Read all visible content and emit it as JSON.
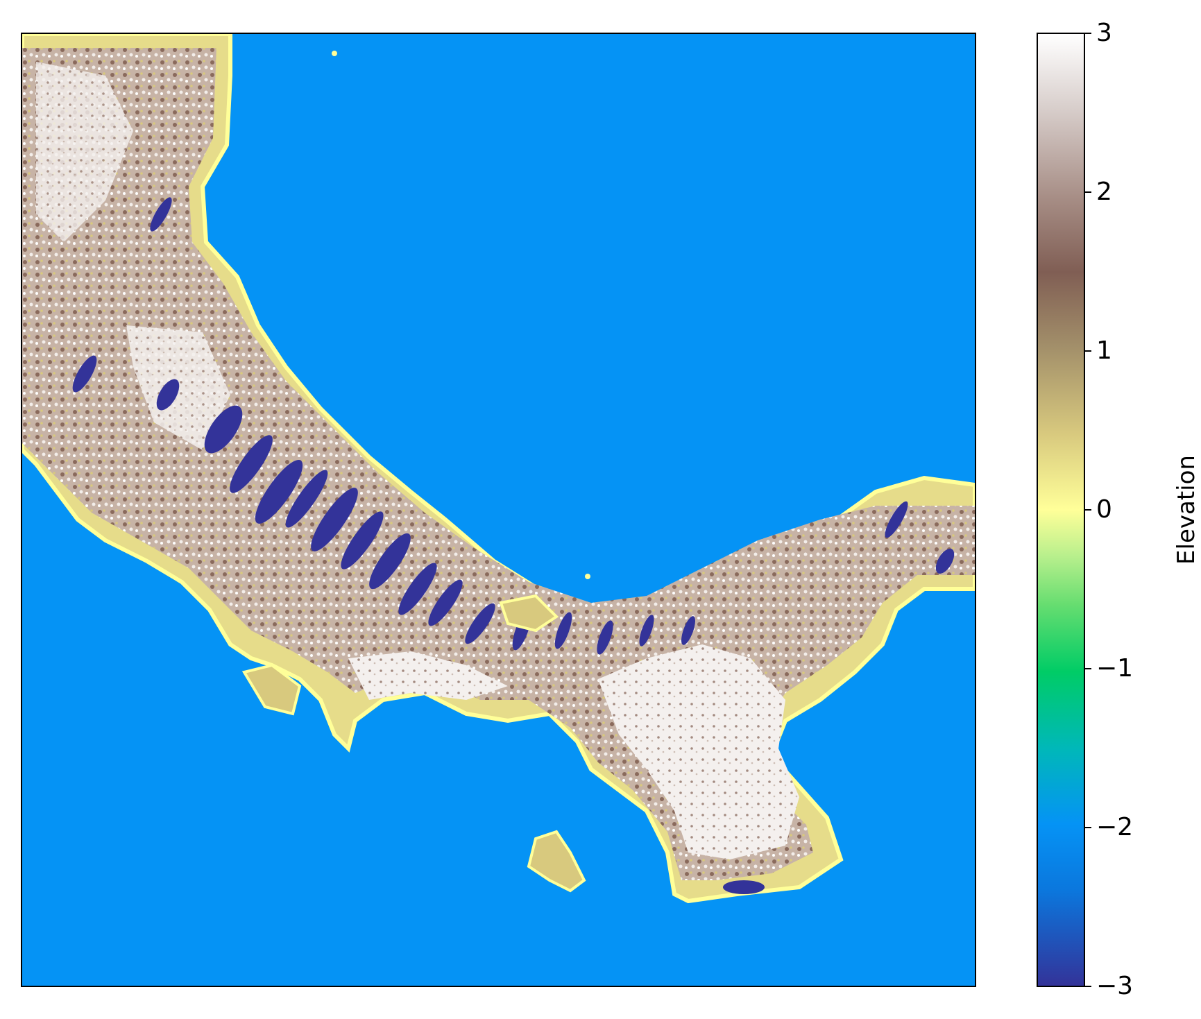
{
  "colorbar": {
    "label": "Elevation",
    "range": [
      -3,
      3
    ],
    "ticks": [
      {
        "value": 3,
        "label": "3"
      },
      {
        "value": 2,
        "label": "2"
      },
      {
        "value": 1,
        "label": "1"
      },
      {
        "value": 0,
        "label": "0"
      },
      {
        "value": -1,
        "label": "−1"
      },
      {
        "value": -2,
        "label": "−2"
      },
      {
        "value": -3,
        "label": "−3"
      }
    ],
    "colormap": "terrain"
  },
  "colors": {
    "water": "#0593f5",
    "coast": "#ffff99",
    "lowland": "#d8c97e",
    "highland": "#805e54",
    "peak": "#ffffff",
    "trough": "#333399"
  }
}
